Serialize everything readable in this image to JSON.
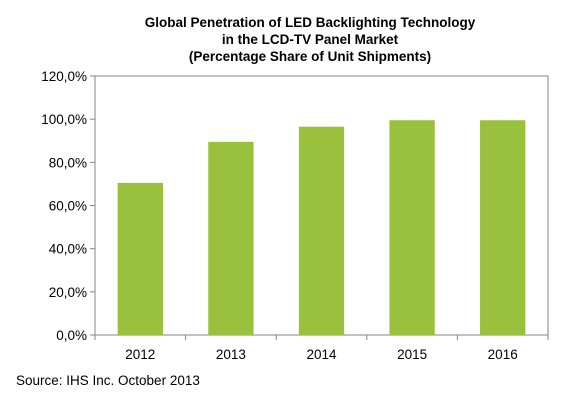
{
  "chart_data": {
    "type": "bar",
    "title_lines": [
      "Global Penetration of LED Backlighting  Technology",
      "in the LCD-TV Panel Market",
      "(Percentage Share of Unit Shipments)"
    ],
    "categories": [
      "2012",
      "2013",
      "2014",
      "2015",
      "2016"
    ],
    "values": [
      70.5,
      89.5,
      96.5,
      99.5,
      99.5
    ],
    "ylim": [
      0,
      120
    ],
    "yticks": [
      0,
      20,
      40,
      60,
      80,
      100,
      120
    ],
    "ytick_labels": [
      "0,0%",
      "20,0%",
      "40,0%",
      "60,0%",
      "80,0%",
      "100,0%",
      "120,0%"
    ],
    "xlabel": "",
    "ylabel": "",
    "grid": false,
    "legend": "none",
    "bar_color": "#99c13d",
    "source": "Source: IHS Inc. October 2013"
  }
}
